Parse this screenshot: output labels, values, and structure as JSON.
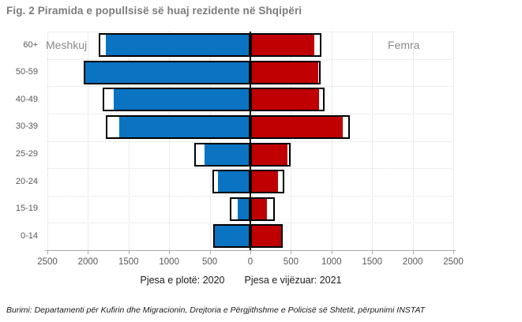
{
  "figure": {
    "title": "Fig. 2 Piramida e popullsisë së huaj rezidente në Shqipëri",
    "source": "Burimi: Departamenti për Kufirin dhe Migracionin, Drejtoria e Përgjithshme e Policisë së Shtetit,  përpunimi INSTAT"
  },
  "legend": {
    "solid_label": "Pjesa e plotë: 2020",
    "outlined_label": "Pjesa e vijëzuar: 2021"
  },
  "chart_data": {
    "type": "bar",
    "subtype": "population-pyramid",
    "title": "Fig. 2 Piramida e popullsisë së huaj rezidente në Shqipëri",
    "left_label": "Meshkuj",
    "right_label": "Femra",
    "age_groups": [
      "60+",
      "50-59",
      "40-49",
      "30-39",
      "25-29",
      "20-24",
      "15-19",
      "0-14"
    ],
    "series": [
      {
        "name": "Meshkuj 2020 (pjesa e plotë)",
        "side": "left",
        "style": "solid",
        "values": [
          1785,
          2050,
          1680,
          1610,
          565,
          400,
          160,
          435
        ]
      },
      {
        "name": "Meshkuj 2021 (pjesa e vijëzuar)",
        "side": "left",
        "style": "outlined",
        "values": [
          1870,
          2050,
          1815,
          1785,
          690,
          465,
          250,
          455
        ]
      },
      {
        "name": "Femra 2020 (pjesa e plotë)",
        "side": "right",
        "style": "solid",
        "values": [
          785,
          835,
          845,
          1135,
          455,
          340,
          205,
          375
        ]
      },
      {
        "name": "Femra 2021 (pjesa e vijëzuar)",
        "side": "right",
        "style": "outlined",
        "values": [
          880,
          870,
          910,
          1230,
          495,
          415,
          300,
          400
        ]
      }
    ],
    "axis_tick_labels": [
      "2500",
      "2000",
      "1500",
      "1000",
      "500",
      "0",
      "500",
      "1000",
      "1500",
      "2000",
      "2500"
    ],
    "xlim": [
      -2500,
      2500
    ],
    "grid": true,
    "legend_position": "bottom",
    "colors": {
      "male_solid": "#0a73c2",
      "female_solid": "#c00000",
      "outline": "#000000",
      "outline_fill": "#ffffff",
      "gridline": "#d9d9d9",
      "axis": "#ababab",
      "label_gray": "#595959",
      "title_gray": "#7c7c7c"
    }
  }
}
